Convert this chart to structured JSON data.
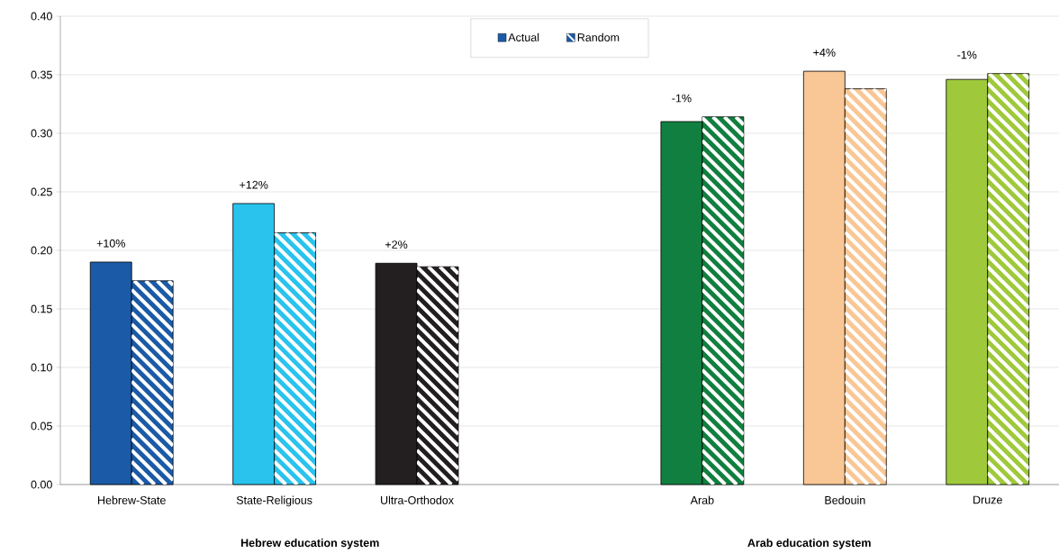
{
  "chart_data": {
    "type": "bar",
    "categories": [
      "Hebrew-State",
      "State-Religious",
      "Ultra-Orthodox",
      null,
      "Arab",
      "Bedouin",
      "Druze"
    ],
    "series": [
      {
        "name": "Actual",
        "colors": [
          "#1b5aa6",
          "#29c3ee",
          "#231f20",
          null,
          "#117f3f",
          "#f9c795",
          "#9fc93b"
        ],
        "values": [
          0.19,
          0.24,
          0.189,
          null,
          0.31,
          0.353,
          0.346
        ]
      },
      {
        "name": "Random",
        "colors": [
          "#1b5aa6",
          "#29c3ee",
          "#231f20",
          null,
          "#117f3f",
          "#f9c795",
          "#9fc93b"
        ],
        "values": [
          0.174,
          0.215,
          0.186,
          null,
          0.314,
          0.338,
          0.351
        ]
      }
    ],
    "ylim": [
      0,
      0.4
    ],
    "yticks": [
      {
        "value": 0,
        "label": "0.00"
      },
      0.05,
      {
        "value": 0.1,
        "label": "0.10"
      },
      0.15,
      {
        "value": 0.2,
        "label": "0.20"
      },
      0.25,
      {
        "value": 0.3,
        "label": "0.30"
      },
      0.35,
      {
        "value": 0.4,
        "label": "0.40"
      }
    ],
    "grid": "y",
    "legend": "top",
    "annotations": [
      "+10%",
      "+12%",
      "+2%",
      "-1%",
      "+4%",
      "-1%",
      "Hebrew education system",
      "Arab education system"
    ]
  }
}
